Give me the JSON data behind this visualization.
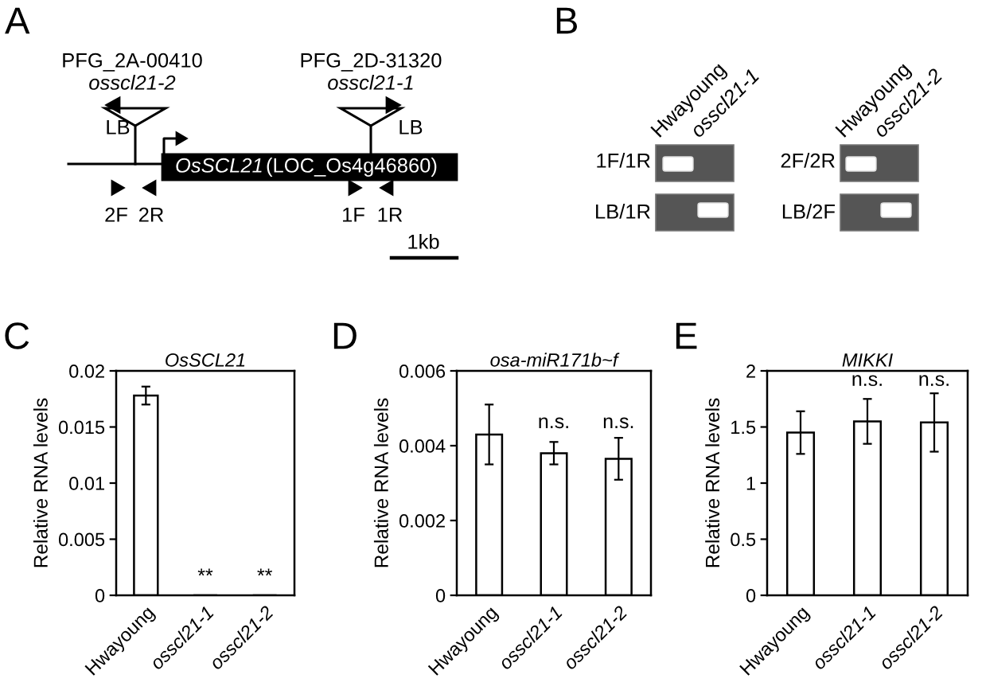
{
  "chart_data": [
    {
      "type": "other",
      "annotations": [
        "A",
        "PFG_2A-00410",
        "osscl21-2",
        "LB",
        "OsSCL21",
        "(LOC_Os4g46860)",
        "2F",
        "2R",
        "PFG_2D-31320",
        "osscl21-1",
        "LB",
        "1F",
        "1R",
        "1kb"
      ]
    },
    {
      "type": "other",
      "annotations": [
        "B",
        "Hwayoung",
        "osscl21-1",
        "1F/1R",
        "LB/1R",
        "Hwayoung",
        "osscl21-2",
        "2F/2R",
        "LB/2F"
      ]
    },
    {
      "type": "bar",
      "title": "OsSCL21",
      "ylabel": "Relative RNA levels",
      "categories": [
        "Hwayoung",
        "osscl21-1",
        "osscl21-2"
      ],
      "values": [
        0.0178,
        0,
        0
      ],
      "errors": [
        0.0008,
        null,
        null
      ],
      "color": "#ffffff",
      "ylim": [
        0,
        0.02
      ],
      "yticks": [
        0,
        0.005,
        0.01,
        0.015,
        0.02
      ],
      "annotations": [
        "C",
        {
          "text": "**",
          "x": "osscl21-1",
          "y": 0
        },
        {
          "text": "**",
          "x": "osscl21-2",
          "y": 0
        }
      ]
    },
    {
      "type": "bar",
      "title": "osa-miR171b~f",
      "ylabel": "Relative RNA levels",
      "categories": [
        "Hwayoung",
        "osscl21-1",
        "osscl21-2"
      ],
      "values": [
        0.0043,
        0.0038,
        0.00365
      ],
      "errors": [
        0.0008,
        0.0003,
        0.00056
      ],
      "color": "#ffffff",
      "ylim": [
        0,
        0.006
      ],
      "yticks": [
        0,
        0.002,
        0.004,
        0.006
      ],
      "annotations": [
        "D",
        {
          "text": "n.s.",
          "x": "osscl21-1",
          "y": 0.0043
        },
        {
          "text": "n.s.",
          "x": "osscl21-2",
          "y": 0.0043
        }
      ]
    },
    {
      "type": "bar",
      "title": "MIKKI",
      "ylabel": "Relative RNA levels",
      "categories": [
        "Hwayoung",
        "osscl21-1",
        "osscl21-2"
      ],
      "values": [
        1.45,
        1.55,
        1.54
      ],
      "errors": [
        0.19,
        0.2,
        0.26
      ],
      "color": "#ffffff",
      "ylim": [
        0,
        2
      ],
      "yticks": [
        0,
        0.5,
        1,
        1.5,
        2
      ],
      "annotations": [
        "E",
        {
          "text": "n.s.",
          "x": "osscl21-1",
          "y": 1.81
        },
        {
          "text": "n.s.",
          "x": "osscl21-2",
          "y": 1.81
        }
      ]
    }
  ]
}
